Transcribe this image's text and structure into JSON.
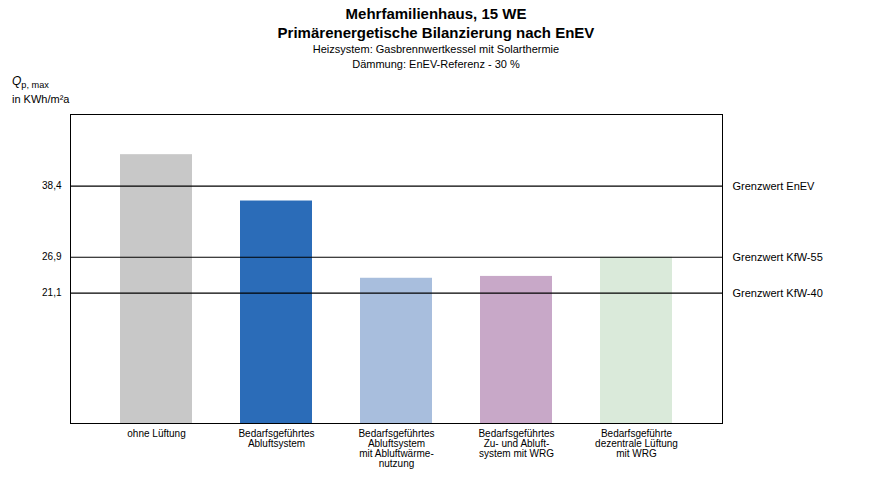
{
  "chart_data": {
    "type": "bar",
    "title": [
      "Mehrfamilienhaus, 15 WE",
      "Primärenergetische Bilanzierung nach EnEV"
    ],
    "subtitle": [
      "Heizsystem: Gasbrennwertkessel mit Solarthermie",
      "Dämmung: EnEV-Referenz - 30 %"
    ],
    "ylabel": [
      "Qp, max",
      "in KWh/m²a"
    ],
    "categories": [
      "ohne Lüftung",
      "Bedarfsgeführtes\nAbluftsystem",
      "Bedarfsgeführtes\nAbluftsystem\nmit Abluftwärme-\nnutzung",
      "Bedarfsgeführtes\nZu- und Abluft-\nsystem mit WRG",
      "Bedarfsgeführte\ndezentrale Lüftung\nmit WRG"
    ],
    "values": [
      43.5,
      36.0,
      23.5,
      23.8,
      26.9
    ],
    "colors": [
      "#c8c8c8",
      "#2b6cb8",
      "#a8bedd",
      "#c8a8c8",
      "#daeada"
    ],
    "annotations": [
      {
        "y": 38.4,
        "text": "Grenzwert EnEV"
      },
      {
        "y": 26.9,
        "text": "Grenzwert KfW-55"
      },
      {
        "y": 21.1,
        "text": "Grenzwert KfW-40"
      }
    ],
    "ylim": [
      0,
      50
    ],
    "yticks": [
      {
        "value": 38.4,
        "label": "38,4"
      },
      {
        "value": 26.9,
        "label": "26,9"
      },
      {
        "value": 21.1,
        "label": "21,1"
      }
    ],
    "grid": false
  }
}
